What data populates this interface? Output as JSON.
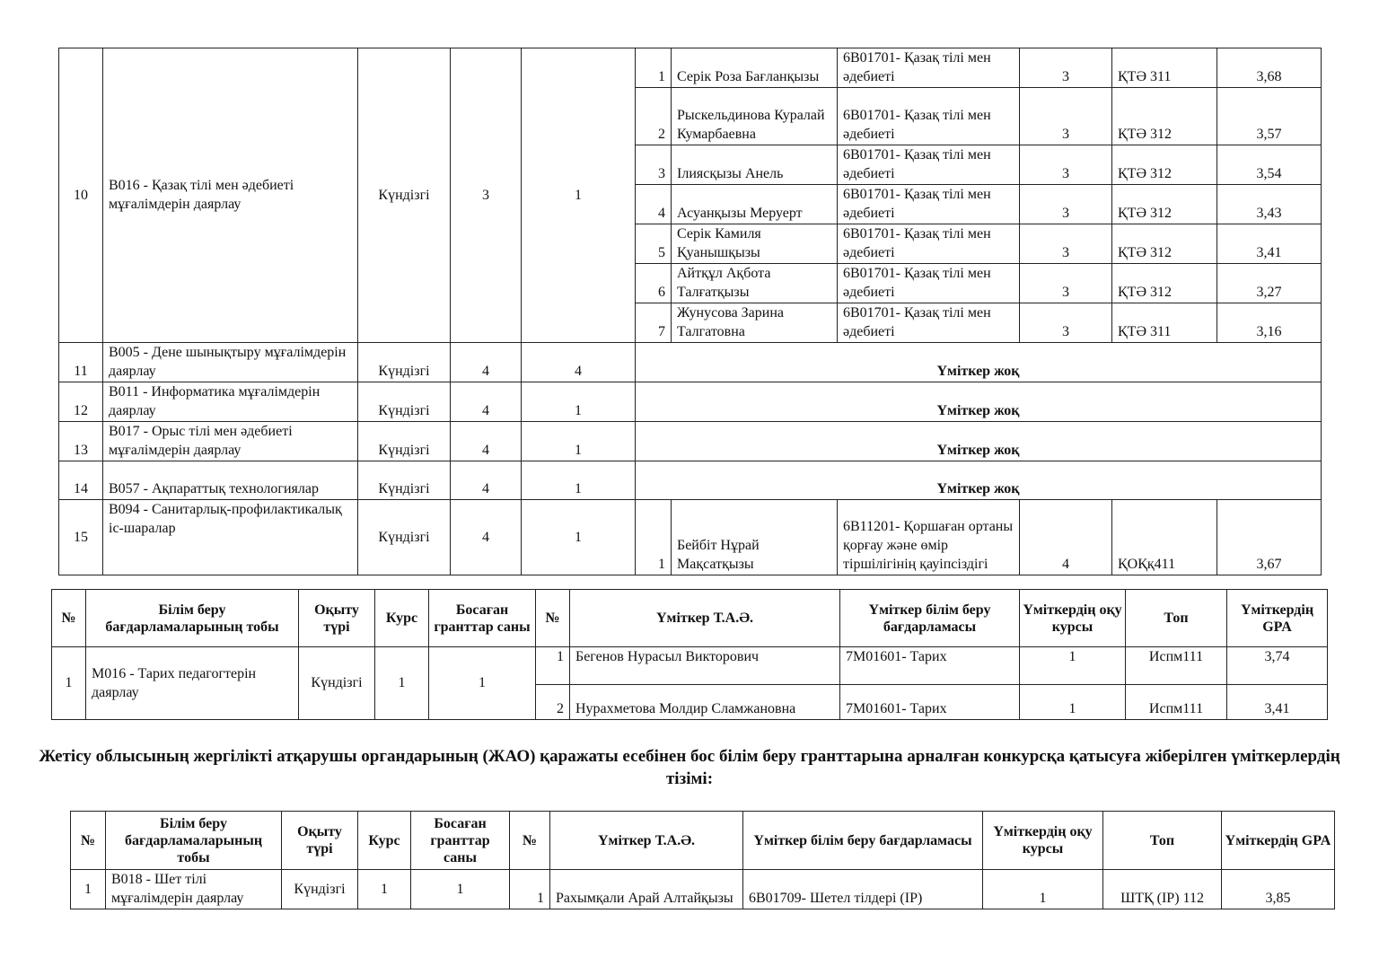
{
  "table1": {
    "rows": [
      {
        "no": "10",
        "group": "В016 - Қазақ тілі мен әдебиеті мұғалімдерін даярлау",
        "form": "Күндізгі",
        "course": "3",
        "grants": "1",
        "candidates": [
          {
            "no": "1",
            "name": "Серік Роза Бағланқызы",
            "program": "6В01701- Қазақ тілі мен әдебиеті",
            "course": "3",
            "group": "ҚТӘ 311",
            "gpa": "3,68"
          },
          {
            "no": "2",
            "name": "Рыскельдинова Куралай Кумарбаевна",
            "program": "6В01701- Қазақ тілі мен әдебиеті",
            "course": "3",
            "group": "ҚТӘ 312",
            "gpa": "3,57"
          },
          {
            "no": "3",
            "name": "Ілиясқызы Анель",
            "program": "6В01701- Қазақ тілі мен әдебиеті",
            "course": "3",
            "group": "ҚТӘ 312",
            "gpa": "3,54"
          },
          {
            "no": "4",
            "name": "Асуанқызы Меруерт",
            "program": "6В01701- Қазақ тілі мен әдебиеті",
            "course": "3",
            "group": "ҚТӘ 312",
            "gpa": "3,43"
          },
          {
            "no": "5",
            "name": "Серік Камиля Қуанышқызы",
            "program": "6В01701- Қазақ тілі мен әдебиеті",
            "course": "3",
            "group": "ҚТӘ 312",
            "gpa": "3,41"
          },
          {
            "no": "6",
            "name": "Айтқұл Ақбота Талғатқызы",
            "program": "6В01701- Қазақ тілі мен әдебиеті",
            "course": "3",
            "group": "ҚТӘ 312",
            "gpa": "3,27"
          },
          {
            "no": "7",
            "name": "Жунусова Зарина Талгатовна",
            "program": "6В01701- Қазақ тілі мен әдебиеті",
            "course": "3",
            "group": "ҚТӘ 311",
            "gpa": "3,16"
          }
        ]
      },
      {
        "no": "11",
        "group": "В005 - Дене шынықтыру мұғалімдерін даярлау",
        "form": "Күндізгі",
        "course": "4",
        "grants": "4",
        "none": "Үміткер жоқ"
      },
      {
        "no": "12",
        "group": "В011 - Информатика мұғалімдерін даярлау",
        "form": "Күндізгі",
        "course": "4",
        "grants": "1",
        "none": "Үміткер жоқ"
      },
      {
        "no": "13",
        "group": "В017 - Орыс тілі мен әдебиеті мұғалімдерін даярлау",
        "form": "Күндізгі",
        "course": "4",
        "grants": "1",
        "none": "Үміткер жоқ"
      },
      {
        "no": "14",
        "group": "В057 - Ақпараттық технологиялар",
        "form": "Күндізгі",
        "course": "4",
        "grants": "1",
        "none": "Үміткер жоқ"
      },
      {
        "no": "15",
        "group": "В094 - Санитарлық-профилактикалық іс-шаралар",
        "form": "Күндізгі",
        "course": "4",
        "grants": "1",
        "candidates": [
          {
            "no": "1",
            "name": "Бейбіт Нұрай Мақсатқызы",
            "program": "6В11201- Қоршаған ортаны қорғау және өмір тіршілігінің қауіпсіздігі",
            "course": "4",
            "group": "ҚОҚқ411",
            "gpa": "3,67"
          }
        ]
      }
    ]
  },
  "headers": [
    "№",
    "Білім беру бағдарламаларының тобы",
    "Оқыту түрі",
    "Курс",
    "Босаған гранттар саны",
    "№",
    "Үміткер Т.А.Ә.",
    "Үміткер білім беру бағдарламасы",
    "Үміткердің оқу курсы",
    "Топ",
    "Үміткердің GPA"
  ],
  "table2": {
    "rows": [
      {
        "no": "1",
        "group": "М016 - Тарих педагогтерін даярлау",
        "form": "Күндізгі",
        "course": "1",
        "grants": "1",
        "candidates": [
          {
            "no": "1",
            "name": "Бегенов Нурасыл Викторович",
            "program": "7М01601- Тарих",
            "course": "1",
            "group": "Испм111",
            "gpa": "3,74"
          },
          {
            "no": "2",
            "name": "Нурахметова Молдир Сламжановна",
            "program": "7М01601- Тарих",
            "course": "1",
            "group": "Испм111",
            "gpa": "3,41"
          }
        ]
      }
    ]
  },
  "heading": "Жетісу облысының жергілікті атқарушы органдарының (ЖАО) қаражаты есебінен бос білім беру гранттарына арналған конкурсқа қатысуға жіберілген үміткерлердің тізімі:",
  "table3": {
    "rows": [
      {
        "no": "1",
        "group": "В018 - Шет тілі мұғалімдерін даярлау",
        "form": "Күндізгі",
        "course": "1",
        "grants": "1",
        "candidates": [
          {
            "no": "1",
            "name": "Рахымқали Арай Алтайқызы",
            "program": "6В01709- Шетел тілдері (ІР)",
            "course": "1",
            "group": "ШТҚ (ІР) 112",
            "gpa": "3,85"
          }
        ]
      }
    ]
  }
}
